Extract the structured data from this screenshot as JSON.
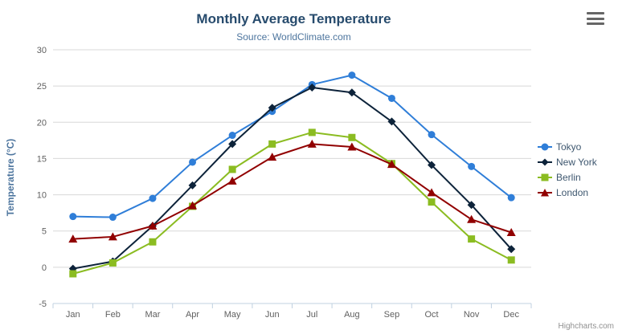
{
  "chart": {
    "title": "Monthly Average Temperature",
    "subtitle": "Source: WorldClimate.com",
    "credits": "Highcharts.com",
    "menu_icon": "hamburger-menu-icon",
    "background_color": "#ffffff",
    "grid_color": "#d8d8d8",
    "axis_line_color": "#c0d0e0",
    "axis_label_color": "#606060",
    "title_color": "#274b6d",
    "subtitle_color": "#4d759e",
    "legend_text_color": "#3E576F",
    "credits_color": "#909090"
  },
  "chart_data": {
    "type": "line",
    "title": "Monthly Average Temperature",
    "subtitle": "Source: WorldClimate.com",
    "xlabel": "",
    "ylabel": "Temperature (°C)",
    "categories": [
      "Jan",
      "Feb",
      "Mar",
      "Apr",
      "May",
      "Jun",
      "Jul",
      "Aug",
      "Sep",
      "Oct",
      "Nov",
      "Dec"
    ],
    "yticks": [
      -5,
      0,
      5,
      10,
      15,
      20,
      25,
      30
    ],
    "ylim": [
      -5,
      30
    ],
    "grid": true,
    "legend_position": "right",
    "series": [
      {
        "name": "Tokyo",
        "color": "#2f7ed8",
        "marker": "circle",
        "values": [
          7.0,
          6.9,
          9.5,
          14.5,
          18.2,
          21.5,
          25.2,
          26.5,
          23.3,
          18.3,
          13.9,
          9.6
        ]
      },
      {
        "name": "New York",
        "color": "#0d233a",
        "marker": "diamond",
        "values": [
          -0.2,
          0.8,
          5.7,
          11.3,
          17.0,
          22.0,
          24.8,
          24.1,
          20.1,
          14.1,
          8.6,
          2.5
        ]
      },
      {
        "name": "Berlin",
        "color": "#8bbc21",
        "marker": "square",
        "values": [
          -0.9,
          0.6,
          3.5,
          8.4,
          13.5,
          17.0,
          18.6,
          17.9,
          14.3,
          9.0,
          3.9,
          1.0
        ]
      },
      {
        "name": "London",
        "color": "#910000",
        "marker": "triangle",
        "values": [
          3.9,
          4.2,
          5.7,
          8.5,
          11.9,
          15.2,
          17.0,
          16.6,
          14.2,
          10.3,
          6.6,
          4.8
        ]
      }
    ]
  }
}
